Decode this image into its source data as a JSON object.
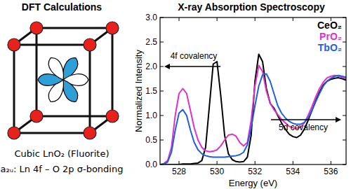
{
  "diagram": {
    "title": "DFT Calculations",
    "caption": [
      "Cubic LnO₂ (Fluorite)",
      "a₂ᵤ: Ln 4f – O 2p σ-bonding"
    ]
  },
  "chart_data": {
    "type": "line",
    "title": "X-ray Absorption Spectroscopy",
    "x_label": "Energy (eV)",
    "y_label": "Normalized Intensity",
    "x": [
      527.0,
      527.2,
      527.4,
      527.6,
      527.8,
      528.0,
      528.2,
      528.4,
      528.6,
      528.8,
      529.0,
      529.2,
      529.4,
      529.6,
      529.8,
      530.0,
      530.2,
      530.4,
      530.6,
      530.8,
      531.0,
      531.2,
      531.4,
      531.6,
      531.8,
      532.0,
      532.2,
      532.4,
      532.6,
      532.8,
      533.0,
      533.2,
      533.4,
      533.6,
      533.8,
      534.0,
      534.2,
      534.4,
      534.6,
      534.8,
      535.0,
      535.2,
      535.4,
      535.6,
      535.8,
      536.0,
      536.2,
      536.4,
      536.6,
      536.8
    ],
    "series": [
      {
        "name": "CeO₂",
        "color": "#000000",
        "values": [
          0,
          0,
          0,
          0,
          0,
          0,
          0.01,
          0.01,
          0.01,
          0.02,
          0.03,
          0.08,
          0.35,
          1.2,
          2.05,
          2.1,
          1.4,
          0.6,
          0.22,
          0.1,
          0.06,
          0.05,
          0.06,
          0.15,
          0.6,
          1.7,
          2.25,
          2.1,
          1.55,
          1.25,
          1.15,
          1.0,
          0.85,
          0.72,
          0.62,
          0.57,
          0.55,
          0.6,
          0.72,
          0.9,
          1.1,
          1.3,
          1.48,
          1.62,
          1.7,
          1.74,
          1.76,
          1.77,
          1.75,
          1.72
        ]
      },
      {
        "name": "PrO₂",
        "color": "#e030cc",
        "values": [
          0,
          0.02,
          0.08,
          0.35,
          1.0,
          1.45,
          1.55,
          1.45,
          1.1,
          0.75,
          0.5,
          0.35,
          0.28,
          0.26,
          0.27,
          0.3,
          0.38,
          0.5,
          0.6,
          0.62,
          0.58,
          0.45,
          0.38,
          0.45,
          0.9,
          1.6,
          2.02,
          1.9,
          1.5,
          1.25,
          1.12,
          1.02,
          0.92,
          0.85,
          0.78,
          0.75,
          0.74,
          0.76,
          0.85,
          1.0,
          1.18,
          1.38,
          1.55,
          1.68,
          1.77,
          1.8,
          1.82,
          1.8,
          1.78,
          1.75
        ]
      },
      {
        "name": "TbO₂",
        "color": "#1f5fe0",
        "values": [
          0,
          0.01,
          0.05,
          0.25,
          0.7,
          1.05,
          1.12,
          1.0,
          0.7,
          0.45,
          0.3,
          0.22,
          0.18,
          0.16,
          0.15,
          0.15,
          0.15,
          0.15,
          0.16,
          0.17,
          0.18,
          0.2,
          0.25,
          0.4,
          0.75,
          1.2,
          1.6,
          1.83,
          1.85,
          1.7,
          1.45,
          1.2,
          1.05,
          0.95,
          0.88,
          0.84,
          0.82,
          0.82,
          0.86,
          0.95,
          1.1,
          1.28,
          1.45,
          1.6,
          1.7,
          1.76,
          1.8,
          1.82,
          1.8,
          1.78
        ]
      }
    ],
    "xlim": [
      527,
      536.8
    ],
    "xticks": [
      528,
      530,
      532,
      534,
      536
    ],
    "ylim": [
      0,
      3
    ],
    "yticks": [
      {
        "value": 0,
        "label": "0.0"
      },
      {
        "value": 0.5,
        "label": "0.5"
      },
      {
        "value": 1,
        "label": "1.0"
      },
      {
        "value": 1.5,
        "label": "1.5"
      },
      {
        "value": 2,
        "label": "2.0"
      },
      {
        "value": 2.5,
        "label": "2.5"
      },
      {
        "value": 3,
        "label": "3.0"
      }
    ],
    "grid": false,
    "legend": "upper right",
    "annotations": [
      "4f covalency",
      "5d covalency"
    ]
  }
}
